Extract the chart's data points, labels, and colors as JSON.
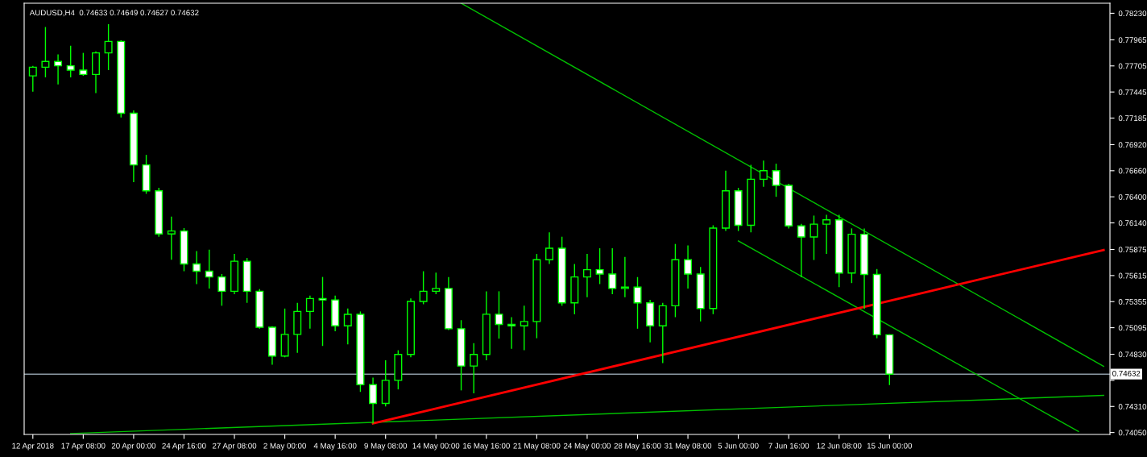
{
  "chart_data": {
    "type": "candlestick",
    "title": "AUDUSD,H4  0.74633 0.74649 0.74627 0.74632",
    "categories": [
      "12 Apr 2018",
      null,
      null,
      null,
      "17 Apr 08:00",
      null,
      null,
      null,
      "20 Apr 00:00",
      null,
      null,
      null,
      "24 Apr 16:00",
      null,
      null,
      null,
      "27 Apr 08:00",
      null,
      null,
      null,
      "2 May 00:00",
      null,
      null,
      null,
      "4 May 16:00",
      null,
      null,
      null,
      "9 May 08:00",
      null,
      null,
      null,
      "14 May 00:00",
      null,
      null,
      null,
      "16 May 16:00",
      null,
      null,
      null,
      "21 May 08:00",
      null,
      null,
      null,
      "24 May 00:00",
      null,
      null,
      null,
      "28 May 16:00",
      null,
      null,
      null,
      "31 May 08:00",
      null,
      null,
      null,
      "5 Jun 00:00",
      null,
      null,
      null,
      "7 Jun 16:00",
      null,
      null,
      null,
      "12 Jun 08:00",
      null,
      null,
      null,
      "15 Jun 00:00",
      null,
      null,
      null,
      null,
      null,
      null,
      null,
      null,
      null,
      null,
      null,
      null,
      null,
      null,
      null,
      null,
      null
    ],
    "color": "#00ff00",
    "ohlc": [
      [
        0.77606,
        0.77706,
        0.77448,
        0.77692
      ],
      [
        0.77692,
        0.78093,
        0.77591,
        0.77749
      ],
      [
        0.77749,
        0.7782,
        0.7752,
        0.77706
      ],
      [
        0.77706,
        0.77906,
        0.77591,
        0.77663
      ],
      [
        0.77663,
        0.77835,
        0.77606,
        0.7762
      ],
      [
        0.7762,
        0.77849,
        0.77434,
        0.77835
      ],
      [
        0.77835,
        0.78121,
        0.77663,
        0.77949
      ],
      [
        0.77949,
        0.7796,
        0.7719,
        0.77233
      ],
      [
        0.77233,
        0.77262,
        0.76546,
        0.76718
      ],
      [
        0.76718,
        0.76818,
        0.7643,
        0.7646
      ],
      [
        0.7646,
        0.7649,
        0.76002,
        0.7603
      ],
      [
        0.7603,
        0.76202,
        0.75773,
        0.76059
      ],
      [
        0.76059,
        0.76088,
        0.75658,
        0.7573
      ],
      [
        0.7573,
        0.75859,
        0.75529,
        0.75658
      ],
      [
        0.75658,
        0.75873,
        0.75486,
        0.75601
      ],
      [
        0.75601,
        0.7563,
        0.75314,
        0.75458
      ],
      [
        0.75458,
        0.7583,
        0.7543,
        0.75758
      ],
      [
        0.75758,
        0.7579,
        0.75343,
        0.75458
      ],
      [
        0.75458,
        0.7548,
        0.75085,
        0.751
      ],
      [
        0.751,
        0.7511,
        0.74727,
        0.74813
      ],
      [
        0.74813,
        0.75286,
        0.748,
        0.75028
      ],
      [
        0.75028,
        0.75343,
        0.74844,
        0.75257
      ],
      [
        0.75257,
        0.75415,
        0.75085,
        0.75386
      ],
      [
        0.75386,
        0.75601,
        0.74913,
        0.75372
      ],
      [
        0.75372,
        0.75415,
        0.7506,
        0.75114
      ],
      [
        0.75114,
        0.75286,
        0.74928,
        0.75228
      ],
      [
        0.75228,
        0.75257,
        0.74455,
        0.74527
      ],
      [
        0.74527,
        0.74598,
        0.7414,
        0.7434
      ],
      [
        0.7434,
        0.7477,
        0.7431,
        0.7457
      ],
      [
        0.7457,
        0.7487,
        0.7448,
        0.74828
      ],
      [
        0.74828,
        0.75386,
        0.748,
        0.75357
      ],
      [
        0.75357,
        0.75658,
        0.75329,
        0.75458
      ],
      [
        0.75458,
        0.75644,
        0.7543,
        0.75486
      ],
      [
        0.75486,
        0.756,
        0.75071,
        0.75085
      ],
      [
        0.75085,
        0.7517,
        0.7447,
        0.74713
      ],
      [
        0.74713,
        0.74942,
        0.74441,
        0.74828
      ],
      [
        0.74828,
        0.75458,
        0.7477,
        0.75229
      ],
      [
        0.75229,
        0.75458,
        0.74986,
        0.75128
      ],
      [
        0.75128,
        0.752,
        0.74885,
        0.75114
      ],
      [
        0.75114,
        0.75314,
        0.7487,
        0.75157
      ],
      [
        0.75157,
        0.7583,
        0.7499,
        0.75773
      ],
      [
        0.75773,
        0.76045,
        0.7573,
        0.75887
      ],
      [
        0.75887,
        0.76002,
        0.75314,
        0.75343
      ],
      [
        0.75343,
        0.7573,
        0.75229,
        0.75601
      ],
      [
        0.75601,
        0.7583,
        0.754,
        0.75673
      ],
      [
        0.75673,
        0.75887,
        0.7553,
        0.7563
      ],
      [
        0.7563,
        0.75887,
        0.7543,
        0.75486
      ],
      [
        0.75486,
        0.75801,
        0.754,
        0.755
      ],
      [
        0.755,
        0.756,
        0.75085,
        0.75343
      ],
      [
        0.75343,
        0.75372,
        0.7495,
        0.75114
      ],
      [
        0.75114,
        0.75343,
        0.74742,
        0.75314
      ],
      [
        0.75314,
        0.7593,
        0.752,
        0.75773
      ],
      [
        0.75773,
        0.75916,
        0.75486,
        0.7563
      ],
      [
        0.7563,
        0.757,
        0.75157,
        0.75286
      ],
      [
        0.75286,
        0.76116,
        0.7523,
        0.76088
      ],
      [
        0.76088,
        0.76661,
        0.76059,
        0.7646
      ],
      [
        0.7646,
        0.76489,
        0.76059,
        0.76116
      ],
      [
        0.76116,
        0.76718,
        0.76045,
        0.76575
      ],
      [
        0.76575,
        0.76761,
        0.765,
        0.76661
      ],
      [
        0.76661,
        0.7673,
        0.764,
        0.76514
      ],
      [
        0.76514,
        0.7653,
        0.76085,
        0.7611
      ],
      [
        0.7611,
        0.7613,
        0.75597,
        0.76
      ],
      [
        0.76,
        0.76213,
        0.7577,
        0.76127
      ],
      [
        0.76127,
        0.7622,
        0.7583,
        0.7617
      ],
      [
        0.7617,
        0.7622,
        0.755,
        0.7564
      ],
      [
        0.7564,
        0.76085,
        0.7554,
        0.76027
      ],
      [
        0.76027,
        0.76085,
        0.75282,
        0.75626
      ],
      [
        0.75626,
        0.7568,
        0.7499,
        0.75024
      ],
      [
        0.75024,
        0.7503,
        0.74523,
        0.74632
      ],
      null,
      null,
      null,
      null,
      null,
      null,
      null,
      null,
      null,
      null,
      null,
      null,
      null,
      null,
      null,
      null,
      null
    ],
    "series": [
      {
        "type": "line",
        "color": "#00c000",
        "values": [
          null,
          null,
          null,
          null,
          null,
          null,
          null,
          null,
          null,
          null,
          null,
          null,
          null,
          null,
          null,
          null,
          null,
          null,
          null,
          null,
          null,
          null,
          null,
          null,
          null,
          null,
          null,
          null,
          null,
          null,
          null,
          null,
          null,
          null,
          0.7833,
          null,
          null,
          null,
          null,
          null,
          null,
          null,
          null,
          null,
          null,
          null,
          null,
          null,
          null,
          null,
          null,
          null,
          null,
          null,
          null,
          null,
          null,
          null,
          null,
          null,
          null,
          null,
          null,
          null,
          null,
          null,
          null,
          null,
          null,
          null,
          null,
          null,
          null,
          null,
          null,
          null,
          null,
          null,
          null,
          null,
          null,
          null,
          null,
          null,
          null,
          0.7471
        ]
      },
      {
        "type": "line",
        "color": "#00c000",
        "values": [
          null,
          null,
          null,
          null,
          null,
          null,
          null,
          null,
          null,
          null,
          null,
          null,
          null,
          null,
          null,
          null,
          null,
          null,
          null,
          null,
          null,
          null,
          null,
          null,
          null,
          null,
          null,
          null,
          null,
          null,
          null,
          null,
          null,
          null,
          null,
          null,
          null,
          null,
          null,
          null,
          null,
          null,
          null,
          null,
          null,
          null,
          null,
          null,
          null,
          null,
          null,
          null,
          null,
          null,
          null,
          null,
          0.7596,
          null,
          null,
          null,
          null,
          null,
          null,
          null,
          null,
          null,
          null,
          null,
          null,
          null,
          null,
          null,
          null,
          null,
          null,
          null,
          null,
          null,
          null,
          null,
          null,
          null,
          null,
          0.7406,
          null,
          null
        ]
      },
      {
        "type": "line",
        "color": "#00c000",
        "values": [
          null,
          null,
          null,
          0.7404,
          null,
          null,
          null,
          null,
          null,
          null,
          null,
          null,
          null,
          null,
          null,
          null,
          null,
          null,
          null,
          null,
          null,
          null,
          null,
          null,
          null,
          null,
          null,
          null,
          null,
          null,
          null,
          null,
          null,
          null,
          null,
          null,
          null,
          null,
          null,
          null,
          null,
          null,
          null,
          null,
          null,
          null,
          null,
          null,
          null,
          null,
          null,
          null,
          null,
          null,
          null,
          null,
          null,
          null,
          null,
          null,
          null,
          null,
          null,
          null,
          null,
          null,
          null,
          null,
          null,
          null,
          null,
          null,
          null,
          null,
          null,
          null,
          null,
          null,
          null,
          null,
          null,
          null,
          null,
          null,
          null,
          0.7442
        ]
      },
      {
        "type": "line",
        "color": "#ff0000",
        "values": [
          null,
          null,
          null,
          null,
          null,
          null,
          null,
          null,
          null,
          null,
          null,
          null,
          null,
          null,
          null,
          null,
          null,
          null,
          null,
          null,
          null,
          null,
          null,
          null,
          null,
          null,
          null,
          0.7414,
          null,
          null,
          null,
          null,
          null,
          null,
          null,
          null,
          null,
          null,
          null,
          null,
          null,
          null,
          null,
          null,
          null,
          null,
          null,
          null,
          null,
          null,
          null,
          null,
          null,
          null,
          null,
          null,
          null,
          null,
          null,
          null,
          null,
          null,
          null,
          null,
          null,
          null,
          null,
          null,
          null,
          null,
          null,
          null,
          null,
          null,
          null,
          null,
          null,
          null,
          null,
          null,
          null,
          null,
          null,
          null,
          null,
          0.7587
        ]
      }
    ],
    "ylim": [
      0.74031,
      0.7833
    ],
    "yticks": [
      {
        "value": 0.7823,
        "label": "0.78230"
      },
      {
        "value": 0.77965,
        "label": "0.77965"
      },
      {
        "value": 0.77705,
        "label": "0.77705"
      },
      {
        "value": 0.77445,
        "label": "0.77445"
      },
      {
        "value": 0.77185,
        "label": "0.77185"
      },
      {
        "value": 0.7692,
        "label": "0.76920"
      },
      {
        "value": 0.7666,
        "label": "0.76660"
      },
      {
        "value": 0.764,
        "label": "0.76400"
      },
      {
        "value": 0.7614,
        "label": "0.76140"
      },
      {
        "value": 0.75875,
        "label": "0.75875"
      },
      {
        "value": 0.75615,
        "label": "0.75615"
      },
      {
        "value": 0.75355,
        "label": "0.75355"
      },
      {
        "value": 0.75095,
        "label": "0.75095"
      },
      {
        "value": 0.7483,
        "label": "0.74830"
      },
      {
        "value": 0.7457,
        "label": null
      },
      {
        "value": 0.7431,
        "label": "0.74310"
      },
      {
        "value": 0.7405,
        "label": "0.74050"
      }
    ],
    "ref_lines": [
      {
        "axis": "y",
        "value": 0.74632,
        "label": "0.74632",
        "color": "#8c9aa4"
      }
    ]
  }
}
